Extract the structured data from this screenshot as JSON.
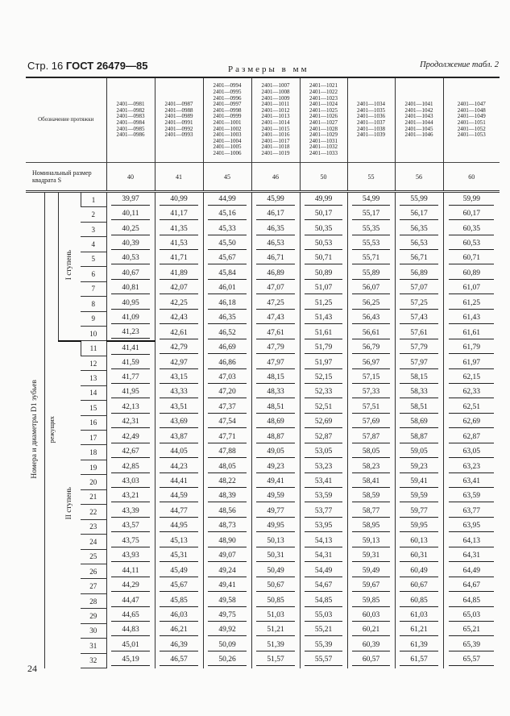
{
  "header": {
    "page": "Стр. 16",
    "standard": "ГОСТ 26479—85",
    "units": "Размеры в мм",
    "continuation": "Продолжение табл. 2"
  },
  "footer": {
    "page_number": "24"
  },
  "table": {
    "designation_label": "Обозначение протяжки",
    "size_label": "Номинальный размер квадрата S",
    "teeth_label": "Номера и диаметры D1 зубьев",
    "cutting_label": "режущих",
    "stage1_label": "I ступень",
    "stage2_label": "II ступень",
    "columns": [
      {
        "codes": "2401—0981\n2401—0982\n2401—0983\n2401—0984\n2401—0985\n2401—0986",
        "size": "40"
      },
      {
        "codes": "2401—0987\n2401—0988\n2401—0989\n2401—0991\n2401—0992\n2401—0993",
        "size": "41"
      },
      {
        "codes": "2401—0994\n2401—0995\n2401—0996\n2401—0997\n2401—0998\n2401—0999\n2401—1001\n2401—1002\n2401—1003\n2401—1004\n2401—1005\n2401—1006",
        "size": "45"
      },
      {
        "codes": "2401—1007\n2401—1008\n2401—1009\n2401—1011\n2401—1012\n2401—1013\n2401—1014\n2401—1015\n2401—1016\n2401—1017\n2401—1018\n2401—1019",
        "size": "46"
      },
      {
        "codes": "2401—1021\n2401—1022\n2401—1023\n2401—1024\n2401—1025\n2401—1026\n2401—1027\n2401—1028\n2401—1029\n2401—1031\n2401—1032\n2401—1033",
        "size": "50"
      },
      {
        "codes": "2401—1034\n2401—1035\n2401—1036\n2401—1037\n2401—1038\n2401—1039",
        "size": "55"
      },
      {
        "codes": "2401—1041\n2401—1042\n2401—1043\n2401—1044\n2401—1045\n2401—1046",
        "size": "56"
      },
      {
        "codes": "2401—1047\n2401—1048\n2401—1049\n2401—1051\n2401—1052\n2401—1053",
        "size": "60"
      }
    ],
    "rows": [
      [
        "1",
        "39,97",
        "40,99",
        "44,99",
        "45,99",
        "49,99",
        "54,99",
        "55,99",
        "59,99"
      ],
      [
        "2",
        "40,11",
        "41,17",
        "45,16",
        "46,17",
        "50,17",
        "55,17",
        "56,17",
        "60,17"
      ],
      [
        "3",
        "40,25",
        "41,35",
        "45,33",
        "46,35",
        "50,35",
        "55,35",
        "56,35",
        "60,35"
      ],
      [
        "4",
        "40,39",
        "41,53",
        "45,50",
        "46,53",
        "50,53",
        "55,53",
        "56,53",
        "60,53"
      ],
      [
        "5",
        "40,53",
        "41,71",
        "45,67",
        "46,71",
        "50,71",
        "55,71",
        "56,71",
        "60,71"
      ],
      [
        "6",
        "40,67",
        "41,89",
        "45,84",
        "46,89",
        "50,89",
        "55,89",
        "56,89",
        "60,89"
      ],
      [
        "7",
        "40,81",
        "42,07",
        "46,01",
        "47,07",
        "51,07",
        "56,07",
        "57,07",
        "61,07"
      ],
      [
        "8",
        "40,95",
        "42,25",
        "46,18",
        "47,25",
        "51,25",
        "56,25",
        "57,25",
        "61,25"
      ],
      [
        "9",
        "41,09",
        "42,43",
        "46,35",
        "47,43",
        "51,43",
        "56,43",
        "57,43",
        "61,43"
      ],
      [
        "10",
        "41,23",
        "42,61",
        "46,52",
        "47,61",
        "51,61",
        "56,61",
        "57,61",
        "61,61"
      ],
      [
        "11",
        "41,41",
        "42,79",
        "46,69",
        "47,79",
        "51,79",
        "56,79",
        "57,79",
        "61,79"
      ],
      [
        "12",
        "41,59",
        "42,97",
        "46,86",
        "47,97",
        "51,97",
        "56,97",
        "57,97",
        "61,97"
      ],
      [
        "13",
        "41,77",
        "43,15",
        "47,03",
        "48,15",
        "52,15",
        "57,15",
        "58,15",
        "62,15"
      ],
      [
        "14",
        "41,95",
        "43,33",
        "47,20",
        "48,33",
        "52,33",
        "57,33",
        "58,33",
        "62,33"
      ],
      [
        "15",
        "42,13",
        "43,51",
        "47,37",
        "48,51",
        "52,51",
        "57,51",
        "58,51",
        "62,51"
      ],
      [
        "16",
        "42,31",
        "43,69",
        "47,54",
        "48,69",
        "52,69",
        "57,69",
        "58,69",
        "62,69"
      ],
      [
        "17",
        "42,49",
        "43,87",
        "47,71",
        "48,87",
        "52,87",
        "57,87",
        "58,87",
        "62,87"
      ],
      [
        "18",
        "42,67",
        "44,05",
        "47,88",
        "49,05",
        "53,05",
        "58,05",
        "59,05",
        "63,05"
      ],
      [
        "19",
        "42,85",
        "44,23",
        "48,05",
        "49,23",
        "53,23",
        "58,23",
        "59,23",
        "63,23"
      ],
      [
        "20",
        "43,03",
        "44,41",
        "48,22",
        "49,41",
        "53,41",
        "58,41",
        "59,41",
        "63,41"
      ],
      [
        "21",
        "43,21",
        "44,59",
        "48,39",
        "49,59",
        "53,59",
        "58,59",
        "59,59",
        "63,59"
      ],
      [
        "22",
        "43,39",
        "44,77",
        "48,56",
        "49,77",
        "53,77",
        "58,77",
        "59,77",
        "63,77"
      ],
      [
        "23",
        "43,57",
        "44,95",
        "48,73",
        "49,95",
        "53,95",
        "58,95",
        "59,95",
        "63,95"
      ],
      [
        "24",
        "43,75",
        "45,13",
        "48,90",
        "50,13",
        "54,13",
        "59,13",
        "60,13",
        "64,13"
      ],
      [
        "25",
        "43,93",
        "45,31",
        "49,07",
        "50,31",
        "54,31",
        "59,31",
        "60,31",
        "64,31"
      ],
      [
        "26",
        "44,11",
        "45,49",
        "49,24",
        "50,49",
        "54,49",
        "59,49",
        "60,49",
        "64,49"
      ],
      [
        "27",
        "44,29",
        "45,67",
        "49,41",
        "50,67",
        "54,67",
        "59,67",
        "60,67",
        "64,67"
      ],
      [
        "28",
        "44,47",
        "45,85",
        "49,58",
        "50,85",
        "54,85",
        "59,85",
        "60,85",
        "64,85"
      ],
      [
        "29",
        "44,65",
        "46,03",
        "49,75",
        "51,03",
        "55,03",
        "60,03",
        "61,03",
        "65,03"
      ],
      [
        "30",
        "44,83",
        "46,21",
        "49,92",
        "51,21",
        "55,21",
        "60,21",
        "61,21",
        "65,21"
      ],
      [
        "31",
        "45,01",
        "46,39",
        "50,09",
        "51,39",
        "55,39",
        "60,39",
        "61,39",
        "65,39"
      ],
      [
        "32",
        "45,19",
        "46,57",
        "50,26",
        "51,57",
        "55,57",
        "60,57",
        "61,57",
        "65,57"
      ]
    ]
  }
}
